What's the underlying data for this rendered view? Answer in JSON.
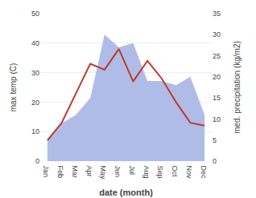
{
  "chart_data": {
    "type": "line",
    "xlabel": "date (month)",
    "ylabel": "max temp (C)",
    "y2label": "med. precipitation (kg/m2)",
    "categories": [
      "Jan",
      "Feb",
      "Mar",
      "Apr",
      "May",
      "Jun",
      "Jul",
      "Aug",
      "Sep",
      "Oct",
      "Nov",
      "Dec"
    ],
    "series": [
      {
        "color": "#c0392b",
        "values": [
          7,
          13,
          23,
          33,
          31,
          38,
          27,
          34,
          28,
          20,
          13,
          12
        ]
      },
      {
        "type": "area",
        "axis": "y2",
        "color": "#b0bce8",
        "values": [
          5,
          9,
          11,
          15,
          30,
          27,
          28,
          19,
          19,
          18,
          20,
          11
        ]
      }
    ],
    "ylim": [
      0,
      50
    ],
    "yticks": [
      0,
      10,
      20,
      30,
      40,
      50
    ],
    "y2lim": [
      0,
      35
    ],
    "y2ticks": [
      0,
      5,
      10,
      15,
      20,
      25,
      30,
      35
    ],
    "grid": true
  }
}
